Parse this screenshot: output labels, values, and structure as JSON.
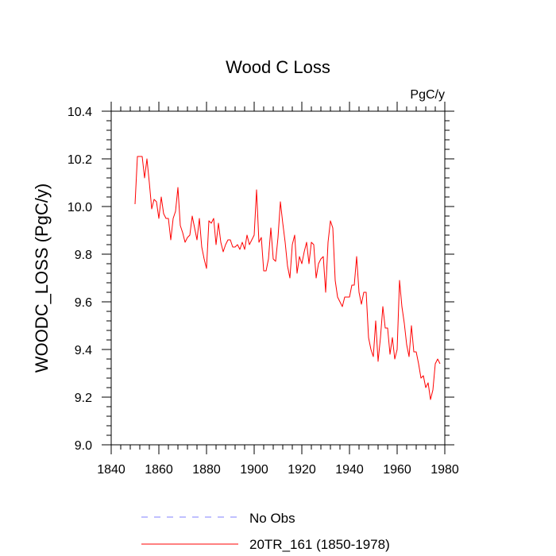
{
  "chart_data": {
    "type": "line",
    "title": "Wood C Loss",
    "units_label": "PgC/y",
    "xlabel": "",
    "ylabel": "WOODC_LOSS  (PgC/y)",
    "xlim": [
      1840,
      1980
    ],
    "ylim": [
      9.0,
      10.4
    ],
    "xticks": [
      1840,
      1860,
      1880,
      1900,
      1920,
      1940,
      1960,
      1980
    ],
    "yticks": [
      9.0,
      9.2,
      9.4,
      9.6,
      9.8,
      10.0,
      10.2,
      10.4
    ],
    "xtick_labels": [
      "1840",
      "1860",
      "1880",
      "1900",
      "1920",
      "1940",
      "1960",
      "1980"
    ],
    "ytick_labels": [
      "9.0",
      "9.2",
      "9.4",
      "9.6",
      "9.8",
      "10.0",
      "10.2",
      "10.4"
    ],
    "x_minor_step": 4,
    "y_minor_step": 0.04,
    "legend": [
      {
        "label": "No Obs",
        "color": "#8080ff",
        "dash": true
      },
      {
        "label": "20TR_161 (1850-1978)",
        "color": "#ff0000",
        "dash": false
      }
    ],
    "series": [
      {
        "name": "20TR_161 (1850-1978)",
        "color": "#ff0000",
        "x_start": 1850,
        "values": [
          10.01,
          10.21,
          10.21,
          10.21,
          10.12,
          10.2,
          10.1,
          9.99,
          10.03,
          10.02,
          9.95,
          10.04,
          9.97,
          9.95,
          9.95,
          9.86,
          9.95,
          9.98,
          10.08,
          9.92,
          9.89,
          9.85,
          9.87,
          9.88,
          9.96,
          9.91,
          9.86,
          9.95,
          9.83,
          9.78,
          9.74,
          9.94,
          9.93,
          9.95,
          9.84,
          9.93,
          9.85,
          9.81,
          9.84,
          9.86,
          9.86,
          9.83,
          9.83,
          9.84,
          9.82,
          9.85,
          9.82,
          9.88,
          9.84,
          9.86,
          9.88,
          10.07,
          9.85,
          9.87,
          9.73,
          9.73,
          9.78,
          9.91,
          9.78,
          9.77,
          9.87,
          10.02,
          9.93,
          9.85,
          9.75,
          9.7,
          9.84,
          9.88,
          9.72,
          9.79,
          9.76,
          9.81,
          9.85,
          9.76,
          9.85,
          9.84,
          9.7,
          9.76,
          9.78,
          9.79,
          9.64,
          9.85,
          9.94,
          9.91,
          9.69,
          9.62,
          9.6,
          9.58,
          9.62,
          9.62,
          9.62,
          9.67,
          9.67,
          9.79,
          9.64,
          9.59,
          9.64,
          9.64,
          9.45,
          9.4,
          9.37,
          9.52,
          9.35,
          9.45,
          9.58,
          9.49,
          9.49,
          9.38,
          9.45,
          9.36,
          9.4,
          9.69,
          9.58,
          9.51,
          9.42,
          9.37,
          9.5,
          9.39,
          9.39,
          9.34,
          9.28,
          9.29,
          9.24,
          9.26,
          9.19,
          9.23,
          9.34,
          9.36,
          9.34
        ]
      }
    ]
  }
}
